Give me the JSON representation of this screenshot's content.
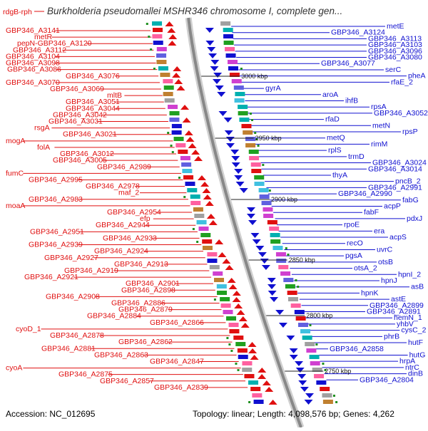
{
  "title": "Burkholderia pseudomallei MSHR346 chromosome I, complete gen...",
  "first_label": "rdgB-rph",
  "footer": {
    "accession": "Accession: NC_012695",
    "summary": "Topology: linear; Length: 4,098,576 bp; Genes: 4,262"
  },
  "colors": {
    "minus_strand": "#e01010",
    "plus_strand": "#1010d0",
    "axis": "#888888"
  },
  "kbp_ticks": [
    "3000 kbp",
    "2950 kbp",
    "2900 kbp",
    "2850 kbp",
    "2800 kbp",
    "2750 kbp"
  ],
  "left_labels": [
    "GBP346_A3141",
    "metR",
    "pepN-GBP346_A3120",
    "GBP346_A3112",
    "GBP346_A3104",
    "GBP346_A3098",
    "GBP346_A3086",
    "GBP346_A3076",
    "GBP346_A3070",
    "GBP346_A3069",
    "mltB",
    "GBP346_A3051",
    "GBP346_A3044",
    "GBP346_A3042",
    "GBP346_A3031",
    "rsgA",
    "GBP346_A3021",
    "mogA",
    "folA",
    "GBP346_A3012",
    "GBP346_A3005",
    "GBP346_A2989",
    "fumC",
    "GBP346_A2995",
    "GBP346_A2978",
    "maf_2",
    "GBP346_A2983",
    "moaA",
    "GBP346_A2954",
    "efp",
    "GBP346_A2944",
    "GBP346_A2951",
    "GBP346_A2933",
    "GBP346_A2939",
    "GBP346_A2924",
    "GBP346_A2927",
    "GBP346_A2913",
    "GBP346_A2919",
    "GBP346_A2921",
    "GBP346_A2901",
    "GBP346_A2898",
    "GBP346_A2908",
    "GBP346_A2886",
    "GBP346_A2879",
    "GBP346_A2884",
    "GBP346_A2866",
    "cyoD_1",
    "GBP346_A2878",
    "GBP346_A2862",
    "GBP346_A2881",
    "GBP346_A2863",
    "GBP346_A2847",
    "cyoA",
    "GBP346_A2875",
    "GBP346_A2857",
    "GBP346_A2839"
  ],
  "right_labels": [
    "metE",
    "GBP346_A3124",
    "GBP346_A3113",
    "GBP346_A3103",
    "GBP346_A3096",
    "GBP346_A3080",
    "GBP346_A3077",
    "serC",
    "pheA",
    "rfaE_2",
    "gyrA",
    "aroA",
    "ihfB",
    "rpsA",
    "GBP346_A3052",
    "rfaD",
    "metN",
    "rpsP",
    "metQ",
    "rimM",
    "rplS",
    "trmD",
    "GBP346_A3024",
    "GBP346_A3014",
    "thyA",
    "pncB_2",
    "GBP346_A2991",
    "GBP346_A2990",
    "fabG",
    "acpP",
    "fabF",
    "pdxJ",
    "rpoE",
    "era",
    "acpS",
    "recO",
    "uvrC",
    "pgsA",
    "otsB",
    "otsA_2",
    "hpnI_2",
    "hpnJ",
    "asB",
    "hpnK",
    "astE",
    "GBP346_A2899",
    "GBP346_A2891",
    "hemN_1",
    "yhbV",
    "cysC_2",
    "phrB",
    "hutF",
    "GBP346_A2858",
    "hutG",
    "hrpA",
    "ntrC",
    "dinB",
    "GBP346_A2804"
  ]
}
